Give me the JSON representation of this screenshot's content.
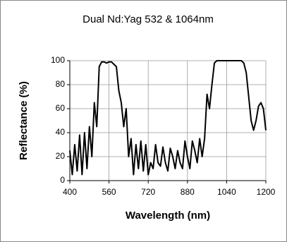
{
  "chart_data": {
    "type": "line",
    "title": "Dual Nd:Yag 532 & 1064nm",
    "x_label": "Wavelength (nm)",
    "y_label": "Reflectance (%)",
    "x": [
      400,
      410,
      420,
      430,
      440,
      450,
      460,
      470,
      480,
      490,
      500,
      510,
      520,
      530,
      540,
      550,
      560,
      570,
      580,
      590,
      600,
      610,
      620,
      630,
      640,
      650,
      660,
      670,
      680,
      690,
      700,
      710,
      720,
      730,
      740,
      750,
      760,
      770,
      780,
      790,
      800,
      810,
      820,
      830,
      840,
      850,
      860,
      870,
      880,
      890,
      900,
      910,
      920,
      930,
      940,
      950,
      960,
      970,
      980,
      990,
      1000,
      1010,
      1020,
      1030,
      1040,
      1050,
      1060,
      1070,
      1080,
      1090,
      1100,
      1110,
      1120,
      1130,
      1140,
      1150,
      1160,
      1170,
      1180,
      1190,
      1200
    ],
    "series": [
      {
        "name": "Reflectance",
        "color": "#000000",
        "values": [
          25,
          5,
          30,
          8,
          38,
          5,
          40,
          10,
          45,
          20,
          65,
          45,
          95,
          99,
          99,
          98,
          99,
          99,
          97,
          95,
          75,
          65,
          45,
          60,
          20,
          35,
          5,
          30,
          10,
          33,
          8,
          30,
          5,
          15,
          10,
          30,
          15,
          12,
          28,
          15,
          8,
          27,
          20,
          10,
          25,
          15,
          10,
          33,
          20,
          10,
          33,
          25,
          15,
          35,
          20,
          35,
          72,
          60,
          80,
          98,
          100,
          100,
          100,
          100,
          100,
          100,
          100,
          100,
          100,
          100,
          100,
          98,
          90,
          70,
          50,
          42,
          50,
          62,
          65,
          60,
          42
        ]
      }
    ],
    "xlim": [
      400,
      1200
    ],
    "xticks": [
      400,
      560,
      720,
      880,
      1040,
      1200
    ],
    "ylim": [
      0,
      100
    ],
    "yticks": [
      0,
      20,
      40,
      60,
      80,
      100
    ],
    "grid": true
  }
}
